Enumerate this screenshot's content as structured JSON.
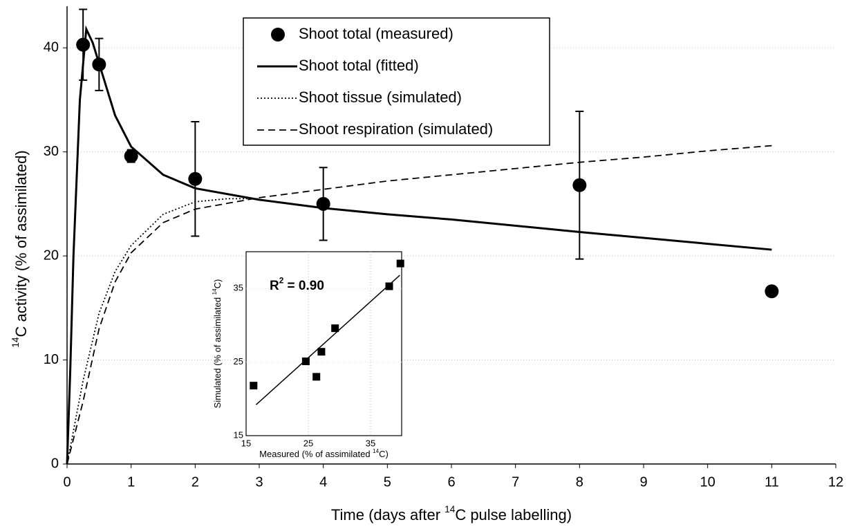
{
  "chart_data": [
    {
      "type": "line",
      "x_label": [
        "Time (days after ",
        "14",
        "C pulse labelling)"
      ],
      "y_label": [
        "14",
        "C activity (% of assimilated)"
      ],
      "xlim": [
        0,
        12
      ],
      "xticks": [
        0,
        1,
        2,
        3,
        4,
        5,
        6,
        7,
        8,
        9,
        10,
        11,
        12
      ],
      "ylim": [
        0,
        44
      ],
      "yticks": [
        0,
        10,
        20,
        30,
        40
      ],
      "grid": true,
      "legend": "top",
      "series": [
        {
          "name": "Shoot total (measured)",
          "style": "marker",
          "color": "#000000",
          "x": [
            0.25,
            0.5,
            1,
            2,
            4,
            8,
            11
          ],
          "values": [
            40.3,
            38.4,
            29.6,
            27.4,
            25.0,
            26.8,
            16.6
          ],
          "errors": [
            3.4,
            2.5,
            0.6,
            5.5,
            3.5,
            7.1,
            null
          ]
        },
        {
          "name": "Shoot total (fitted)",
          "style": "solid",
          "color": "#000000",
          "x": [
            0,
            0.05,
            0.1,
            0.2,
            0.3,
            0.4,
            0.5,
            0.75,
            1,
            1.5,
            2,
            3,
            4,
            5,
            6,
            8,
            11
          ],
          "values": [
            0,
            9,
            20,
            35,
            41.8,
            40.5,
            38.5,
            33.5,
            30.5,
            27.8,
            26.5,
            25.4,
            24.6,
            24.0,
            23.5,
            22.3,
            20.6
          ]
        },
        {
          "name": "Shoot tissue (simulated)",
          "style": "dotted",
          "color": "#000000",
          "x": [
            0,
            0.25,
            0.5,
            0.75,
            1,
            1.5,
            2,
            2.5,
            3
          ],
          "values": [
            0,
            8,
            14.5,
            18.5,
            21,
            24,
            25.2,
            25.5,
            25.5
          ]
        },
        {
          "name": "Shoot respiration (simulated)",
          "style": "dashed",
          "color": "#000000",
          "x": [
            0,
            0.25,
            0.5,
            0.75,
            1,
            1.5,
            2,
            3,
            4,
            5,
            6,
            7,
            8,
            9,
            10,
            11
          ],
          "values": [
            0,
            6,
            13,
            17.5,
            20.3,
            23.2,
            24.5,
            25.6,
            26.4,
            27.2,
            27.8,
            28.4,
            29.0,
            29.5,
            30.1,
            30.6
          ]
        }
      ]
    },
    {
      "type": "scatter",
      "x_label": [
        "Measured (% of assimilated ",
        "14",
        "C)"
      ],
      "y_label": [
        "Simulated (% of assimilated ",
        "14",
        "C)"
      ],
      "annotation": [
        "R",
        "2",
        " = 0.90"
      ],
      "xlim": [
        15,
        40
      ],
      "xticks": [
        15,
        25,
        35
      ],
      "ylim": [
        15,
        40
      ],
      "yticks": [
        15,
        25,
        35
      ],
      "grid": true,
      "color": "#000000",
      "x": [
        16.2,
        24.6,
        26.3,
        27.1,
        29.3,
        38.0,
        39.8
      ],
      "values": [
        21.8,
        25.1,
        23.0,
        26.4,
        29.6,
        35.3,
        38.4
      ],
      "fit": {
        "x": [
          16.6,
          39.7
        ],
        "values": [
          19.2,
          36.8
        ]
      }
    }
  ]
}
